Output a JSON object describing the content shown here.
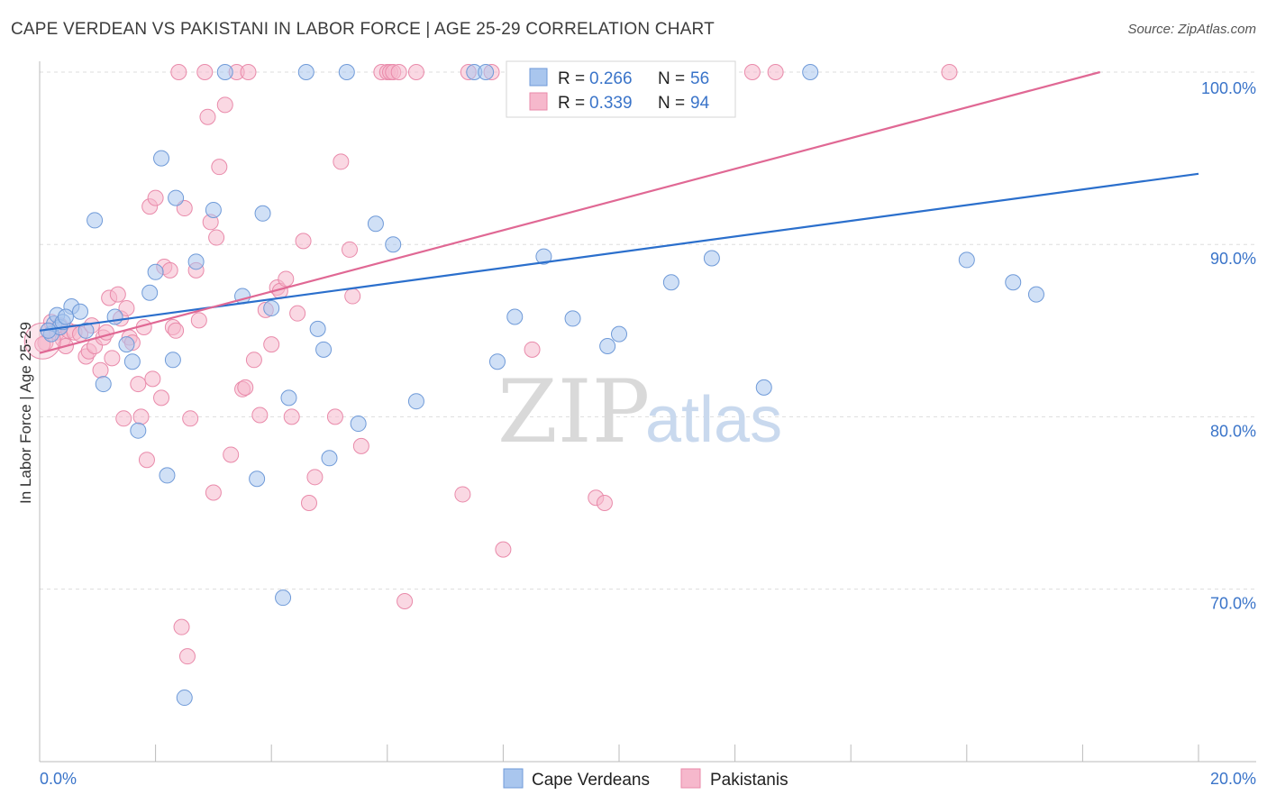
{
  "title": "CAPE VERDEAN VS PAKISTANI IN LABOR FORCE | AGE 25-29 CORRELATION CHART",
  "source": "Source: ZipAtlas.com",
  "watermark": {
    "zip": "ZIP",
    "atlas": "atlas"
  },
  "colors": {
    "blue_fill": "#a9c6ee",
    "blue_stroke": "#6f9ad8",
    "blue_line": "#2b6fcc",
    "pink_fill": "#f6b8cc",
    "pink_stroke": "#e98aaa",
    "pink_line": "#e06894",
    "grid": "#dddddd",
    "tick_label": "#3a74c9"
  },
  "chart_data": {
    "type": "scatter",
    "title": "CAPE VERDEAN VS PAKISTANI IN LABOR FORCE | AGE 25-29 CORRELATION CHART",
    "xlabel": "",
    "ylabel": "In Labor Force | Age 25-29",
    "xlim": [
      0,
      20
    ],
    "ylim": [
      60.5,
      101.5
    ],
    "x_tick_labels": [
      "0.0%",
      "20.0%"
    ],
    "y_ticks": [
      70,
      80,
      90,
      100
    ],
    "y_tick_labels": [
      "70.0%",
      "80.0%",
      "90.0%",
      "100.0%"
    ],
    "grid": true,
    "legend_position": "top-center",
    "legend": [
      {
        "name": "Cape Verdeans",
        "r_label": "R =",
        "r": "0.266",
        "n_label": "N =",
        "n": "56"
      },
      {
        "name": "Pakistanis",
        "r_label": "R =",
        "r": "0.339",
        "n_label": "N =",
        "n": "94"
      }
    ],
    "series": [
      {
        "name": "Cape Verdeans",
        "color": "#a9c6ee",
        "trend": [
          [
            0,
            85.0
          ],
          [
            20,
            94.1
          ]
        ],
        "points": [
          [
            0.2,
            84.8
          ],
          [
            0.25,
            85.4
          ],
          [
            0.3,
            85.9
          ],
          [
            0.35,
            85.2
          ],
          [
            0.4,
            85.5
          ],
          [
            0.55,
            86.4
          ],
          [
            0.7,
            86.1
          ],
          [
            0.8,
            85.0
          ],
          [
            0.95,
            91.4
          ],
          [
            1.1,
            81.9
          ],
          [
            1.3,
            85.8
          ],
          [
            1.5,
            84.2
          ],
          [
            1.6,
            83.2
          ],
          [
            1.7,
            79.2
          ],
          [
            1.9,
            87.2
          ],
          [
            2.0,
            88.4
          ],
          [
            2.1,
            95.0
          ],
          [
            2.2,
            76.6
          ],
          [
            2.3,
            83.3
          ],
          [
            2.35,
            92.7
          ],
          [
            2.5,
            63.7
          ],
          [
            2.7,
            89.0
          ],
          [
            3.0,
            92.0
          ],
          [
            3.2,
            100.0
          ],
          [
            3.5,
            87.0
          ],
          [
            3.75,
            76.4
          ],
          [
            3.85,
            91.8
          ],
          [
            4.0,
            86.3
          ],
          [
            4.2,
            69.5
          ],
          [
            4.3,
            81.1
          ],
          [
            4.6,
            100.0
          ],
          [
            4.8,
            85.1
          ],
          [
            4.9,
            83.9
          ],
          [
            5.0,
            77.6
          ],
          [
            5.3,
            100.0
          ],
          [
            5.5,
            79.6
          ],
          [
            5.8,
            91.2
          ],
          [
            6.1,
            90.0
          ],
          [
            6.5,
            80.9
          ],
          [
            7.5,
            100.0
          ],
          [
            7.7,
            100.0
          ],
          [
            7.9,
            83.2
          ],
          [
            8.2,
            85.8
          ],
          [
            8.7,
            89.3
          ],
          [
            9.2,
            85.7
          ],
          [
            9.8,
            84.1
          ],
          [
            10.0,
            84.8
          ],
          [
            10.9,
            87.8
          ],
          [
            11.6,
            89.2
          ],
          [
            12.5,
            81.7
          ],
          [
            13.3,
            100.0
          ],
          [
            16.0,
            89.1
          ],
          [
            16.8,
            87.8
          ],
          [
            17.2,
            87.1
          ],
          [
            0.15,
            85.0
          ],
          [
            0.45,
            85.8
          ]
        ]
      },
      {
        "name": "Pakistanis",
        "color": "#f6b8cc",
        "trend": [
          [
            0,
            83.7
          ],
          [
            18.3,
            100.0
          ]
        ],
        "points": [
          [
            0.1,
            84.3
          ],
          [
            0.15,
            85.0
          ],
          [
            0.2,
            85.5
          ],
          [
            0.3,
            84.9
          ],
          [
            0.35,
            85.3
          ],
          [
            0.4,
            84.5
          ],
          [
            0.45,
            84.1
          ],
          [
            0.5,
            85.0
          ],
          [
            0.6,
            84.9
          ],
          [
            0.7,
            84.8
          ],
          [
            0.8,
            83.5
          ],
          [
            0.85,
            83.8
          ],
          [
            0.9,
            85.3
          ],
          [
            0.95,
            84.1
          ],
          [
            1.05,
            82.7
          ],
          [
            1.1,
            84.6
          ],
          [
            1.15,
            84.9
          ],
          [
            1.2,
            86.9
          ],
          [
            1.25,
            83.4
          ],
          [
            1.35,
            87.1
          ],
          [
            1.4,
            85.7
          ],
          [
            1.45,
            79.9
          ],
          [
            1.5,
            86.3
          ],
          [
            1.55,
            84.6
          ],
          [
            1.6,
            84.3
          ],
          [
            1.7,
            81.9
          ],
          [
            1.75,
            80.0
          ],
          [
            1.8,
            85.2
          ],
          [
            1.85,
            77.5
          ],
          [
            1.9,
            92.2
          ],
          [
            1.95,
            82.2
          ],
          [
            2.0,
            92.7
          ],
          [
            2.1,
            81.1
          ],
          [
            2.15,
            88.7
          ],
          [
            2.25,
            88.5
          ],
          [
            2.3,
            85.2
          ],
          [
            2.35,
            85.0
          ],
          [
            2.4,
            100.0
          ],
          [
            2.45,
            67.8
          ],
          [
            2.5,
            92.1
          ],
          [
            2.55,
            66.1
          ],
          [
            2.6,
            79.9
          ],
          [
            2.7,
            88.5
          ],
          [
            2.75,
            85.6
          ],
          [
            2.85,
            100.0
          ],
          [
            2.9,
            97.4
          ],
          [
            2.95,
            91.3
          ],
          [
            3.0,
            75.6
          ],
          [
            3.05,
            90.4
          ],
          [
            3.1,
            94.5
          ],
          [
            3.2,
            98.1
          ],
          [
            3.3,
            77.8
          ],
          [
            3.4,
            100.0
          ],
          [
            3.5,
            81.6
          ],
          [
            3.55,
            81.7
          ],
          [
            3.6,
            100.0
          ],
          [
            3.7,
            83.3
          ],
          [
            3.8,
            80.1
          ],
          [
            3.9,
            86.2
          ],
          [
            4.0,
            84.2
          ],
          [
            4.1,
            87.5
          ],
          [
            4.15,
            87.3
          ],
          [
            4.25,
            88.0
          ],
          [
            4.35,
            80.0
          ],
          [
            4.45,
            86.0
          ],
          [
            4.55,
            90.2
          ],
          [
            4.65,
            75.0
          ],
          [
            4.75,
            76.5
          ],
          [
            5.1,
            80.0
          ],
          [
            5.2,
            94.8
          ],
          [
            5.35,
            89.7
          ],
          [
            5.4,
            87.0
          ],
          [
            5.55,
            78.3
          ],
          [
            5.9,
            100.0
          ],
          [
            6.0,
            100.0
          ],
          [
            6.05,
            100.0
          ],
          [
            6.1,
            100.0
          ],
          [
            6.2,
            100.0
          ],
          [
            6.3,
            69.3
          ],
          [
            6.5,
            100.0
          ],
          [
            7.3,
            75.5
          ],
          [
            7.4,
            100.0
          ],
          [
            7.8,
            100.0
          ],
          [
            8.0,
            72.3
          ],
          [
            8.4,
            100.0
          ],
          [
            8.5,
            83.9
          ],
          [
            8.8,
            100.0
          ],
          [
            9.4,
            100.0
          ],
          [
            9.6,
            75.3
          ],
          [
            9.75,
            75.0
          ],
          [
            12.3,
            100.0
          ],
          [
            12.7,
            100.0
          ],
          [
            15.7,
            100.0
          ],
          [
            0.05,
            84.2
          ]
        ]
      }
    ]
  }
}
